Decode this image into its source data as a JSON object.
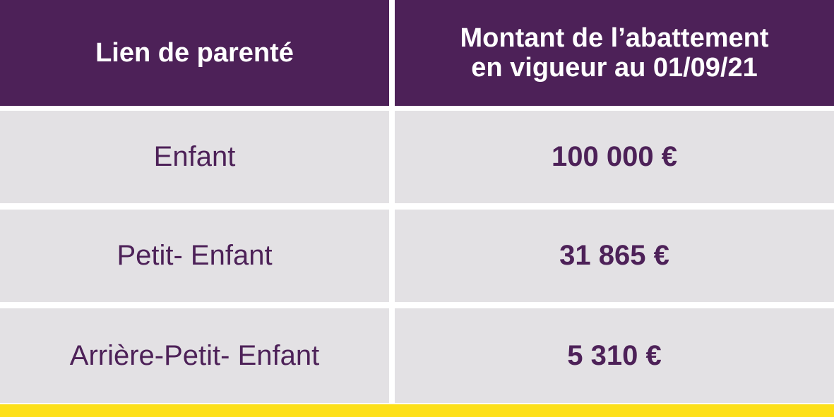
{
  "table": {
    "headers": {
      "relationship": "Lien de parenté",
      "amount_line1": "Montant de l’abattement",
      "amount_line2": "en vigueur au 01/09/21"
    },
    "rows": [
      {
        "relationship": "Enfant",
        "amount": "100 000 €"
      },
      {
        "relationship": "Petit- Enfant",
        "amount": "31 865 €"
      },
      {
        "relationship": "Arrière-Petit- Enfant",
        "amount": "5 310 €"
      }
    ]
  },
  "colors": {
    "header_bg": "#4d2158",
    "header_text": "#ffffff",
    "row_bg": "#e3e1e4",
    "row_text": "#4d2158",
    "accent_bar": "#fde019"
  }
}
